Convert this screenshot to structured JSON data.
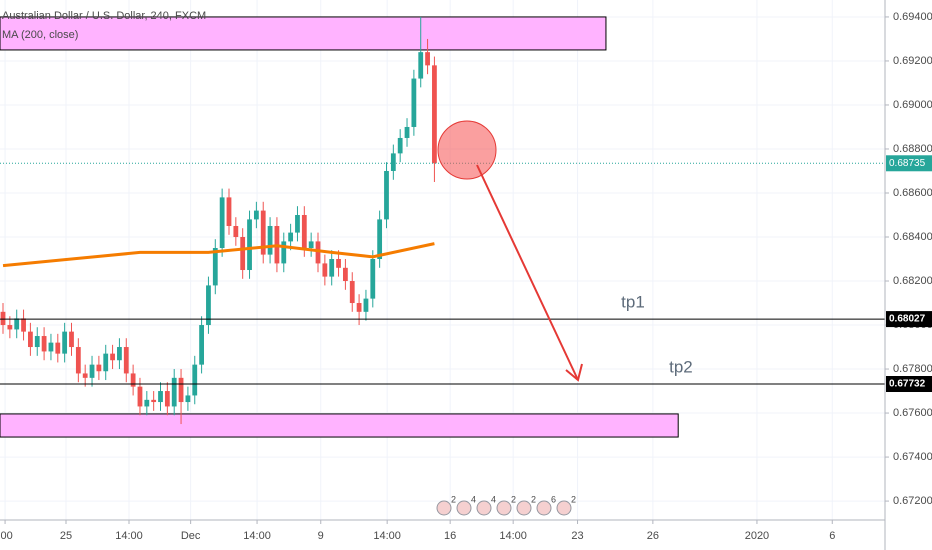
{
  "chart_data": {
    "type": "candlestick",
    "title": "Australian Dollar / U.S. Dollar, 240, FXCM",
    "indicator": {
      "name": "MA (200, close)",
      "color": "#f57c00",
      "x": [
        0,
        10,
        20,
        30,
        40,
        48,
        54,
        63
      ],
      "values": [
        0.6827,
        0.683,
        0.6833,
        0.6833,
        0.6836,
        0.6833,
        0.6831,
        0.6837
      ]
    },
    "up_color": "#26a69a",
    "down_color": "#ef5350",
    "open": [
      0.6806,
      0.68,
      0.6798,
      0.6803,
      0.6797,
      0.679,
      0.6795,
      0.6788,
      0.6792,
      0.6787,
      0.6797,
      0.679,
      0.6778,
      0.6776,
      0.6782,
      0.6779,
      0.6787,
      0.6784,
      0.679,
      0.6778,
      0.6772,
      0.6763,
      0.6766,
      0.6765,
      0.677,
      0.6763,
      0.6776,
      0.6765,
      0.6768,
      0.6782,
      0.68,
      0.6818,
      0.6835,
      0.6858,
      0.6845,
      0.684,
      0.6825,
      0.6848,
      0.6852,
      0.6832,
      0.6845,
      0.6828,
      0.6838,
      0.6842,
      0.685,
      0.6835,
      0.6838,
      0.6828,
      0.6822,
      0.683,
      0.6826,
      0.682,
      0.681,
      0.6806,
      0.6812,
      0.683,
      0.6848,
      0.687,
      0.6878,
      0.6885,
      0.689,
      0.6912,
      0.6924,
      0.6918
    ],
    "high": [
      0.681,
      0.6804,
      0.6807,
      0.6807,
      0.6801,
      0.6799,
      0.6799,
      0.6796,
      0.6796,
      0.6801,
      0.6801,
      0.6794,
      0.6782,
      0.6786,
      0.6786,
      0.6791,
      0.6791,
      0.6794,
      0.6794,
      0.6782,
      0.6776,
      0.677,
      0.677,
      0.6774,
      0.6774,
      0.678,
      0.678,
      0.6772,
      0.6786,
      0.6804,
      0.6822,
      0.6839,
      0.6862,
      0.6862,
      0.6849,
      0.6844,
      0.6852,
      0.6856,
      0.6856,
      0.6849,
      0.6849,
      0.6842,
      0.6846,
      0.6854,
      0.6854,
      0.6842,
      0.6842,
      0.6832,
      0.6834,
      0.6834,
      0.683,
      0.6824,
      0.6814,
      0.6816,
      0.6834,
      0.6852,
      0.6874,
      0.6882,
      0.6889,
      0.6894,
      0.6916,
      0.694,
      0.693,
      0.6922
    ],
    "low": [
      0.6796,
      0.6794,
      0.6794,
      0.6793,
      0.6786,
      0.6786,
      0.6784,
      0.6784,
      0.6783,
      0.6783,
      0.6786,
      0.6774,
      0.6772,
      0.6772,
      0.6775,
      0.6775,
      0.678,
      0.678,
      0.6774,
      0.6768,
      0.6759,
      0.6759,
      0.6761,
      0.6761,
      0.6759,
      0.6759,
      0.6755,
      0.6761,
      0.6764,
      0.6778,
      0.6796,
      0.6814,
      0.6831,
      0.6841,
      0.6836,
      0.6821,
      0.6821,
      0.6844,
      0.6828,
      0.6828,
      0.6824,
      0.6824,
      0.6834,
      0.6838,
      0.6831,
      0.6831,
      0.6824,
      0.6818,
      0.6818,
      0.6822,
      0.6816,
      0.6806,
      0.68,
      0.6802,
      0.6808,
      0.6826,
      0.6844,
      0.6866,
      0.6874,
      0.6881,
      0.6886,
      0.6908,
      0.6914,
      0.6865
    ],
    "close": [
      0.68,
      0.6798,
      0.6803,
      0.6797,
      0.679,
      0.6795,
      0.6788,
      0.6792,
      0.6787,
      0.6797,
      0.679,
      0.6778,
      0.6776,
      0.6782,
      0.6779,
      0.6787,
      0.6784,
      0.679,
      0.6778,
      0.6772,
      0.6763,
      0.6766,
      0.6765,
      0.677,
      0.6763,
      0.6776,
      0.6765,
      0.6768,
      0.6782,
      0.68,
      0.6818,
      0.6835,
      0.6858,
      0.6845,
      0.684,
      0.6825,
      0.6848,
      0.6852,
      0.6832,
      0.6845,
      0.6828,
      0.6838,
      0.6842,
      0.685,
      0.6835,
      0.6838,
      0.6828,
      0.6822,
      0.683,
      0.6826,
      0.682,
      0.681,
      0.6806,
      0.6812,
      0.683,
      0.6848,
      0.687,
      0.6878,
      0.6885,
      0.689,
      0.6912,
      0.6924,
      0.6918,
      0.68735
    ],
    "xlim": [
      -0.44,
      128.8
    ],
    "xticks": [
      {
        "value": 0.3,
        "label": ":00"
      },
      {
        "value": 9.2,
        "label": "25"
      },
      {
        "value": 18.4,
        "label": "14:00"
      },
      {
        "value": 27.4,
        "label": "Dec"
      },
      {
        "value": 37.1,
        "label": "14:00"
      },
      {
        "value": 46.4,
        "label": "9"
      },
      {
        "value": 56.1,
        "label": "14:00"
      },
      {
        "value": 65.3,
        "label": "16"
      },
      {
        "value": 74.5,
        "label": "14:00"
      },
      {
        "value": 83.9,
        "label": "23"
      },
      {
        "value": 94.9,
        "label": "26"
      },
      {
        "value": 110.1,
        "label": "2020"
      },
      {
        "value": 121.1,
        "label": "6"
      }
    ],
    "ylim": [
      0.67114,
      0.69477
    ],
    "yticks": [
      {
        "value": 0.672,
        "label": "0.67200"
      },
      {
        "value": 0.674,
        "label": "0.67400"
      },
      {
        "value": 0.676,
        "label": "0.67600"
      },
      {
        "value": 0.678,
        "label": "0.67800"
      },
      {
        "value": 0.68,
        "label": "0.68000"
      },
      {
        "value": 0.682,
        "label": "0.68200"
      },
      {
        "value": 0.684,
        "label": "0.68400"
      },
      {
        "value": 0.686,
        "label": "0.68600"
      },
      {
        "value": 0.688,
        "label": "0.68800"
      },
      {
        "value": 0.69,
        "label": "0.69000"
      },
      {
        "value": 0.692,
        "label": "0.69200"
      },
      {
        "value": 0.694,
        "label": "0.69400"
      }
    ],
    "grid": true,
    "last_price": 0.68735,
    "last_price_color": "#26a69a",
    "levels": [
      {
        "value": 0.68027,
        "name": "tp1",
        "x": 92
      },
      {
        "value": 0.67732,
        "name": "tp2",
        "x": 99
      }
    ],
    "zones": [
      {
        "ylim": [
          0.6925,
          0.694
        ],
        "xlim": [
          -0.44,
          88.05
        ]
      },
      {
        "ylim": [
          0.67491,
          0.67596
        ],
        "xlim": [
          -0.44,
          98.6
        ]
      }
    ],
    "zone_color": "#ffb3ff",
    "events": [
      "2",
      "4",
      "4",
      "2",
      "2",
      "6",
      "2"
    ]
  }
}
